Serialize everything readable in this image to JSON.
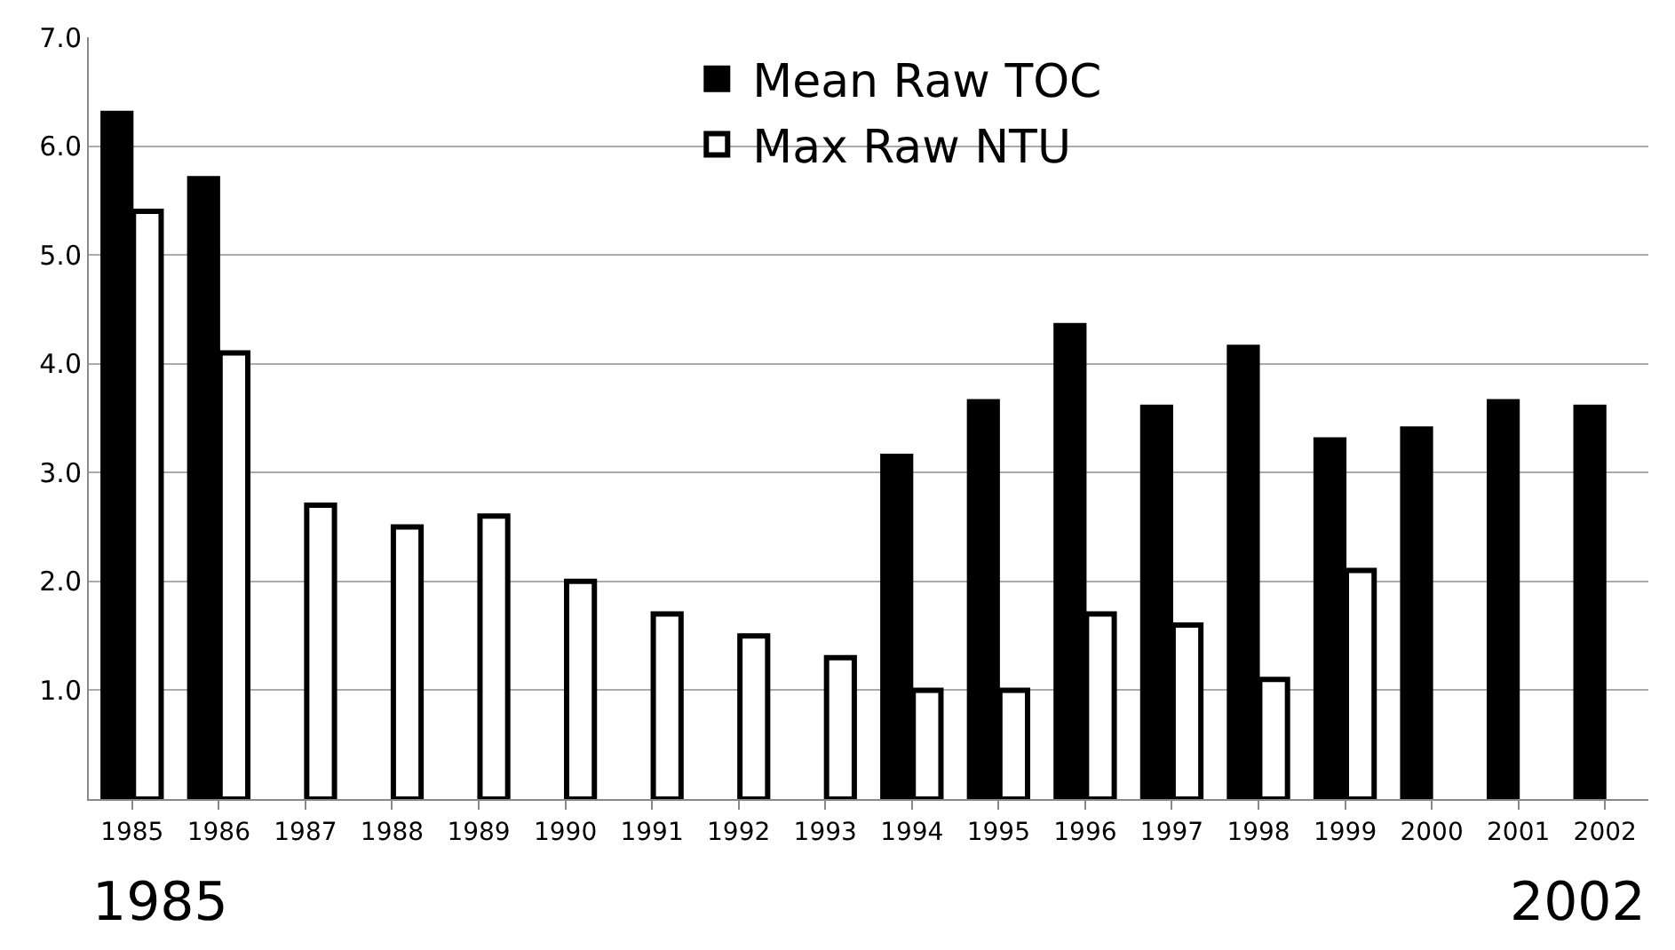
{
  "chart_data": {
    "type": "bar",
    "categories": [
      "1985",
      "1986",
      "1987",
      "1988",
      "1989",
      "1990",
      "1991",
      "1992",
      "1993",
      "1994",
      "1995",
      "1996",
      "1997",
      "1998",
      "1999",
      "2000",
      "2001",
      "2002"
    ],
    "series": [
      {
        "name": "Mean Raw TOC",
        "color": "#000000",
        "values": [
          6.3,
          5.7,
          null,
          null,
          null,
          null,
          null,
          null,
          null,
          3.15,
          3.65,
          4.35,
          3.6,
          4.15,
          3.3,
          3.4,
          3.65,
          3.6
        ]
      },
      {
        "name": "Max Raw NTU",
        "color": "#ffffff",
        "values": [
          5.4,
          4.1,
          2.7,
          2.5,
          2.6,
          2.0,
          1.7,
          1.5,
          1.3,
          1.0,
          1.0,
          1.7,
          1.6,
          1.1,
          2.1,
          null,
          null,
          null
        ]
      }
    ],
    "ylim": [
      0,
      7
    ],
    "yticks": [
      {
        "value": 1,
        "label": "1.0"
      },
      {
        "value": 2,
        "label": "2.0"
      },
      {
        "value": 3,
        "label": "3.0"
      },
      {
        "value": 4,
        "label": "4.0"
      },
      {
        "value": 5,
        "label": "5.0"
      },
      {
        "value": 6,
        "label": "6.0"
      },
      {
        "value": 7,
        "label": "7.0"
      }
    ],
    "grid": "y",
    "legend": "top",
    "annotations": [
      "1985",
      "2002"
    ]
  }
}
